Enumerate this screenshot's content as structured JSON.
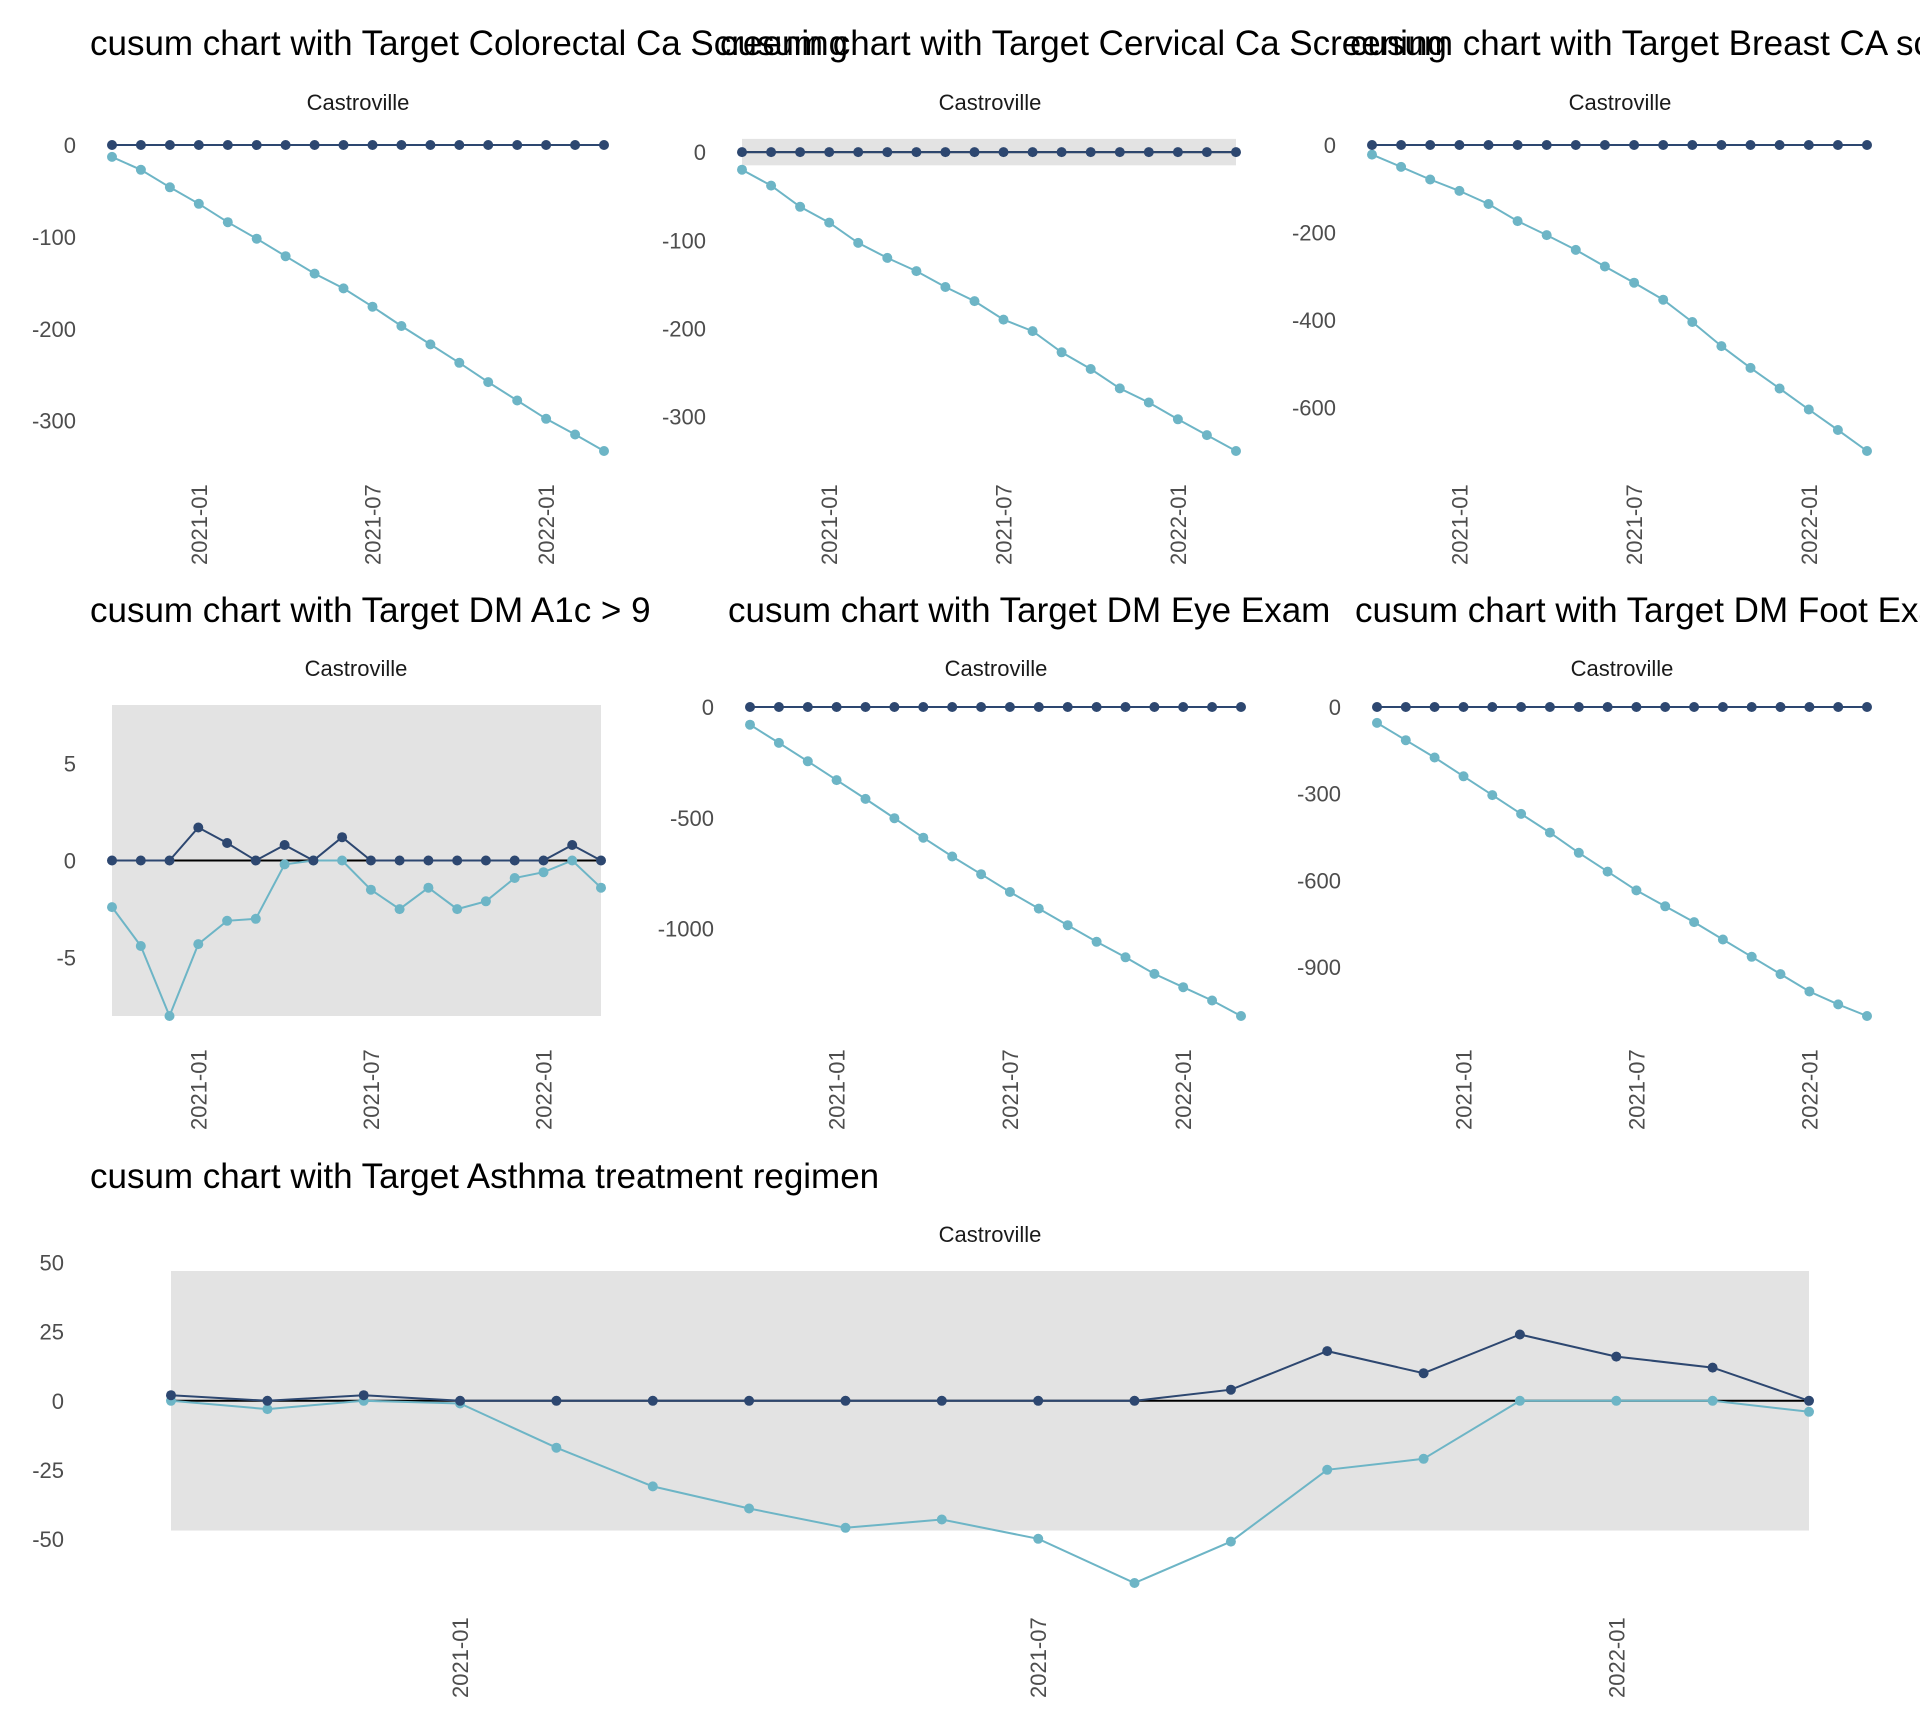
{
  "colors": {
    "upper_series": "#2d4770",
    "lower_series": "#6db5c6",
    "target_line": "#000000",
    "control_band": "#e3e3e3",
    "text": "#000000",
    "tick_text": "#4d4d4d"
  },
  "chart_data": [
    {
      "type": "line",
      "title": "cusum chart with Target  Colorectal Ca Screening",
      "facet": "Castroville",
      "x": [
        "2020-10",
        "2020-11",
        "2020-12",
        "2021-01",
        "2021-02",
        "2021-03",
        "2021-04",
        "2021-05",
        "2021-06",
        "2021-07",
        "2021-08",
        "2021-09",
        "2021-10",
        "2021-11",
        "2021-12",
        "2022-01",
        "2022-02",
        "2022-03"
      ],
      "x_ticks": [
        "2021-01",
        "2021-07",
        "2022-01"
      ],
      "y_ticks": [
        0,
        -100,
        -200,
        -300
      ],
      "ylim": [
        -333,
        0
      ],
      "band": null,
      "series": [
        {
          "role": "upper",
          "values": [
            0,
            0,
            0,
            0,
            0,
            0,
            0,
            0,
            0,
            0,
            0,
            0,
            0,
            0,
            0,
            0,
            0,
            0
          ]
        },
        {
          "role": "lower",
          "values": [
            -13,
            -27,
            -46,
            -64,
            -84,
            -102,
            -121,
            -140,
            -156,
            -176,
            -197,
            -217,
            -237,
            -258,
            -278,
            -298,
            -315,
            -333
          ]
        }
      ]
    },
    {
      "type": "line",
      "title": "cusum chart with Target  Cervical Ca Screening",
      "facet": "Castroville",
      "x": [
        "2020-10",
        "2020-11",
        "2020-12",
        "2021-01",
        "2021-02",
        "2021-03",
        "2021-04",
        "2021-05",
        "2021-06",
        "2021-07",
        "2021-08",
        "2021-09",
        "2021-10",
        "2021-11",
        "2021-12",
        "2022-01",
        "2022-02",
        "2022-03"
      ],
      "x_ticks": [
        "2021-01",
        "2021-07",
        "2022-01"
      ],
      "y_ticks": [
        0,
        -100,
        -200,
        -300
      ],
      "ylim": [
        -339,
        16
      ],
      "band": [
        -15,
        15
      ],
      "series": [
        {
          "role": "upper",
          "values": [
            0,
            0,
            0,
            0,
            0,
            0,
            0,
            0,
            0,
            0,
            0,
            0,
            0,
            0,
            0,
            0,
            0,
            0
          ]
        },
        {
          "role": "lower",
          "values": [
            -20,
            -38,
            -62,
            -80,
            -103,
            -120,
            -135,
            -153,
            -169,
            -190,
            -203,
            -227,
            -246,
            -268,
            -284,
            -303,
            -321,
            -339
          ]
        }
      ]
    },
    {
      "type": "line",
      "title": "cusum chart with Target  Breast CA screening",
      "facet": "Castroville",
      "x": [
        "2020-10",
        "2020-11",
        "2020-12",
        "2021-01",
        "2021-02",
        "2021-03",
        "2021-04",
        "2021-05",
        "2021-06",
        "2021-07",
        "2021-08",
        "2021-09",
        "2021-10",
        "2021-11",
        "2021-12",
        "2022-01",
        "2022-02",
        "2022-03"
      ],
      "x_ticks": [
        "2021-01",
        "2021-07",
        "2022-01"
      ],
      "y_ticks": [
        0,
        -200,
        -400,
        -600
      ],
      "ylim": [
        -700,
        0
      ],
      "band": null,
      "series": [
        {
          "role": "upper",
          "values": [
            0,
            0,
            0,
            0,
            0,
            0,
            0,
            0,
            0,
            0,
            0,
            0,
            0,
            0,
            0,
            0,
            0,
            0
          ]
        },
        {
          "role": "lower",
          "values": [
            -22,
            -50,
            -79,
            -105,
            -135,
            -174,
            -206,
            -240,
            -278,
            -315,
            -354,
            -405,
            -460,
            -510,
            -557,
            -605,
            -652,
            -700
          ]
        }
      ]
    },
    {
      "type": "line",
      "title": "cusum chart with Target  DM A1c > 9",
      "facet": "Castroville",
      "x": [
        "2020-10",
        "2020-11",
        "2020-12",
        "2021-01",
        "2021-02",
        "2021-03",
        "2021-04",
        "2021-05",
        "2021-06",
        "2021-07",
        "2021-08",
        "2021-09",
        "2021-10",
        "2021-11",
        "2021-12",
        "2022-01",
        "2022-02",
        "2022-03"
      ],
      "x_ticks": [
        "2021-01",
        "2021-07",
        "2022-01"
      ],
      "y_ticks": [
        5,
        0,
        -5
      ],
      "ylim": [
        -8,
        8
      ],
      "band": [
        -8,
        8
      ],
      "series": [
        {
          "role": "upper",
          "values": [
            0,
            0,
            0,
            1.7,
            0.9,
            0,
            0.8,
            0,
            1.2,
            0,
            0,
            0,
            0,
            0,
            0,
            0,
            0.8,
            0
          ]
        },
        {
          "role": "lower",
          "values": [
            -2.4,
            -4.4,
            -8,
            -4.3,
            -3.1,
            -3,
            -0.2,
            0,
            0,
            -1.5,
            -2.5,
            -1.4,
            -2.5,
            -2.1,
            -0.9,
            -0.6,
            0,
            -1.4
          ]
        }
      ]
    },
    {
      "type": "line",
      "title": "cusum chart with Target  DM Eye Exam",
      "facet": "Castroville",
      "x": [
        "2020-10",
        "2020-11",
        "2020-12",
        "2021-01",
        "2021-02",
        "2021-03",
        "2021-04",
        "2021-05",
        "2021-06",
        "2021-07",
        "2021-08",
        "2021-09",
        "2021-10",
        "2021-11",
        "2021-12",
        "2022-01",
        "2022-02",
        "2022-03"
      ],
      "x_ticks": [
        "2021-01",
        "2021-07",
        "2022-01"
      ],
      "y_ticks": [
        0,
        -500,
        -1000
      ],
      "ylim": [
        -1395,
        0
      ],
      "band": null,
      "series": [
        {
          "role": "upper",
          "values": [
            0,
            0,
            0,
            0,
            0,
            0,
            0,
            0,
            0,
            0,
            0,
            0,
            0,
            0,
            0,
            0,
            0,
            0
          ]
        },
        {
          "role": "lower",
          "values": [
            -80,
            -162,
            -245,
            -330,
            -415,
            -502,
            -590,
            -675,
            -755,
            -835,
            -910,
            -985,
            -1060,
            -1130,
            -1205,
            -1265,
            -1325,
            -1395
          ]
        }
      ]
    },
    {
      "type": "line",
      "title": "cusum chart with Target  DM Foot Exam",
      "facet": "Castroville",
      "x": [
        "2020-10",
        "2020-11",
        "2020-12",
        "2021-01",
        "2021-02",
        "2021-03",
        "2021-04",
        "2021-05",
        "2021-06",
        "2021-07",
        "2021-08",
        "2021-09",
        "2021-10",
        "2021-11",
        "2021-12",
        "2022-01",
        "2022-02",
        "2022-03"
      ],
      "x_ticks": [
        "2021-01",
        "2021-07",
        "2022-01"
      ],
      "y_ticks": [
        0,
        -300,
        -600,
        -900
      ],
      "ylim": [
        -1070,
        0
      ],
      "band": null,
      "series": [
        {
          "role": "upper",
          "values": [
            0,
            0,
            0,
            0,
            0,
            0,
            0,
            0,
            0,
            0,
            0,
            0,
            0,
            0,
            0,
            0,
            0,
            0
          ]
        },
        {
          "role": "lower",
          "values": [
            -55,
            -115,
            -175,
            -240,
            -305,
            -370,
            -435,
            -505,
            -570,
            -635,
            -690,
            -745,
            -805,
            -865,
            -925,
            -985,
            -1030,
            -1070
          ]
        }
      ]
    },
    {
      "type": "line",
      "title": "cusum chart with Target  Asthma treatment regimen",
      "facet": "Castroville",
      "x": [
        "2020-10",
        "2020-11",
        "2020-12",
        "2021-01",
        "2021-02",
        "2021-03",
        "2021-04",
        "2021-05",
        "2021-06",
        "2021-07",
        "2021-08",
        "2021-09",
        "2021-10",
        "2021-11",
        "2021-12",
        "2022-01",
        "2022-02",
        "2022-03"
      ],
      "x_ticks": [
        "2021-01",
        "2021-07",
        "2022-01"
      ],
      "y_ticks": [
        50,
        25,
        0,
        -25,
        -50
      ],
      "ylim": [
        -66,
        47
      ],
      "band": [
        -47,
        47
      ],
      "series": [
        {
          "role": "upper",
          "values": [
            2,
            0,
            2,
            0,
            0,
            0,
            0,
            0,
            0,
            0,
            0,
            4,
            18,
            10,
            24,
            16,
            12,
            0
          ]
        },
        {
          "role": "lower",
          "values": [
            0,
            -3,
            0,
            -1,
            -17,
            -31,
            -39,
            -46,
            -43,
            -50,
            -66,
            -51,
            -25,
            -21,
            0,
            0,
            0,
            -4
          ]
        }
      ]
    }
  ]
}
